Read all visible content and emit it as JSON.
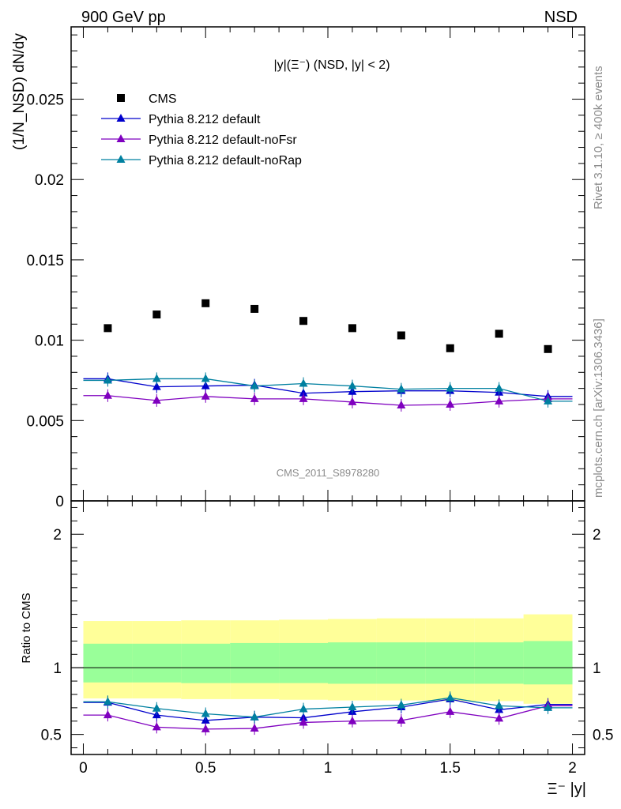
{
  "header": {
    "left": "900 GeV pp",
    "right": "NSD"
  },
  "side": {
    "rivet": "Rivet 3.1.10, ≥ 400k events",
    "mcplots": "mcplots.cern.ch [arXiv:1306.3436]"
  },
  "analysis_id": "CMS_2011_S8978280",
  "colors": {
    "cms": "#000000",
    "default": "#0000cc",
    "noFsr": "#7f00bf",
    "noRap": "#0080a0",
    "band_green": "#99ff99",
    "band_yellow": "#ffff99"
  },
  "chart_data": [
    {
      "type": "scatter",
      "panel": "main",
      "title": "|y|(Ξ⁻) (NSD, |y| < 2)",
      "ylabel": "(1/N_NSD) dN/dy",
      "xlim": [
        -0.05,
        2.05
      ],
      "ylim": [
        0,
        0.0295
      ],
      "yticks": [
        "0",
        "0.005",
        "0.01",
        "0.015",
        "0.02",
        "0.025"
      ],
      "x": [
        0.1,
        0.3,
        0.5,
        0.7,
        0.9,
        1.1,
        1.3,
        1.5,
        1.7,
        1.9
      ],
      "legend_placement": "top-left",
      "series": [
        {
          "name": "CMS",
          "marker": "square",
          "values": [
            0.01075,
            0.0116,
            0.0123,
            0.01195,
            0.0112,
            0.01075,
            0.0103,
            0.0095,
            0.0104,
            0.00945
          ]
        },
        {
          "name": "Pythia 8.212 default",
          "marker": "triangle",
          "values": [
            0.0076,
            0.0071,
            0.00715,
            0.0072,
            0.0067,
            0.0068,
            0.00685,
            0.00685,
            0.00675,
            0.0065
          ]
        },
        {
          "name": "Pythia 8.212 default-noFsr",
          "marker": "triangle",
          "values": [
            0.00655,
            0.00625,
            0.0065,
            0.00635,
            0.00635,
            0.00615,
            0.00595,
            0.006,
            0.0062,
            0.00635
          ]
        },
        {
          "name": "Pythia 8.212 default-noRap",
          "marker": "triangle",
          "values": [
            0.0075,
            0.0076,
            0.0076,
            0.00715,
            0.0073,
            0.00715,
            0.00695,
            0.007,
            0.007,
            0.0062
          ]
        }
      ]
    },
    {
      "type": "line",
      "panel": "ratio",
      "xlabel": "Ξ⁻ |y|",
      "ylabel": "Ratio to CMS",
      "xlim": [
        -0.05,
        2.05
      ],
      "ylim": [
        0.35,
        2.25
      ],
      "yticks": [
        "0.5",
        "1",
        "2"
      ],
      "xticks": [
        "0",
        "0.5",
        "1",
        "1.5",
        "2"
      ],
      "x": [
        0.1,
        0.3,
        0.5,
        0.7,
        0.9,
        1.1,
        1.3,
        1.5,
        1.7,
        1.9
      ],
      "bands": {
        "edges": [
          0.0,
          0.2,
          0.4,
          0.6,
          0.8,
          1.0,
          1.2,
          1.4,
          1.6,
          1.8,
          2.0
        ],
        "yellow": [
          [
            0.77,
            1.35
          ],
          [
            0.77,
            1.35
          ],
          [
            0.765,
            1.355
          ],
          [
            0.765,
            1.355
          ],
          [
            0.76,
            1.36
          ],
          [
            0.755,
            1.365
          ],
          [
            0.755,
            1.37
          ],
          [
            0.75,
            1.37
          ],
          [
            0.75,
            1.37
          ],
          [
            0.73,
            1.4
          ]
        ],
        "green": [
          [
            0.89,
            1.18
          ],
          [
            0.89,
            1.18
          ],
          [
            0.885,
            1.18
          ],
          [
            0.885,
            1.185
          ],
          [
            0.885,
            1.185
          ],
          [
            0.88,
            1.19
          ],
          [
            0.88,
            1.19
          ],
          [
            0.88,
            1.19
          ],
          [
            0.88,
            1.19
          ],
          [
            0.875,
            1.2
          ]
        ]
      },
      "series": [
        {
          "name": "Pythia 8.212 default",
          "values": [
            0.74,
            0.645,
            0.605,
            0.63,
            0.625,
            0.67,
            0.705,
            0.765,
            0.685,
            0.725
          ]
        },
        {
          "name": "Pythia 8.212 default-noFsr",
          "values": [
            0.645,
            0.555,
            0.54,
            0.545,
            0.59,
            0.6,
            0.605,
            0.67,
            0.62,
            0.715
          ]
        },
        {
          "name": "Pythia 8.212 default-noRap",
          "values": [
            0.745,
            0.695,
            0.655,
            0.63,
            0.69,
            0.705,
            0.72,
            0.775,
            0.715,
            0.7
          ]
        }
      ]
    }
  ]
}
